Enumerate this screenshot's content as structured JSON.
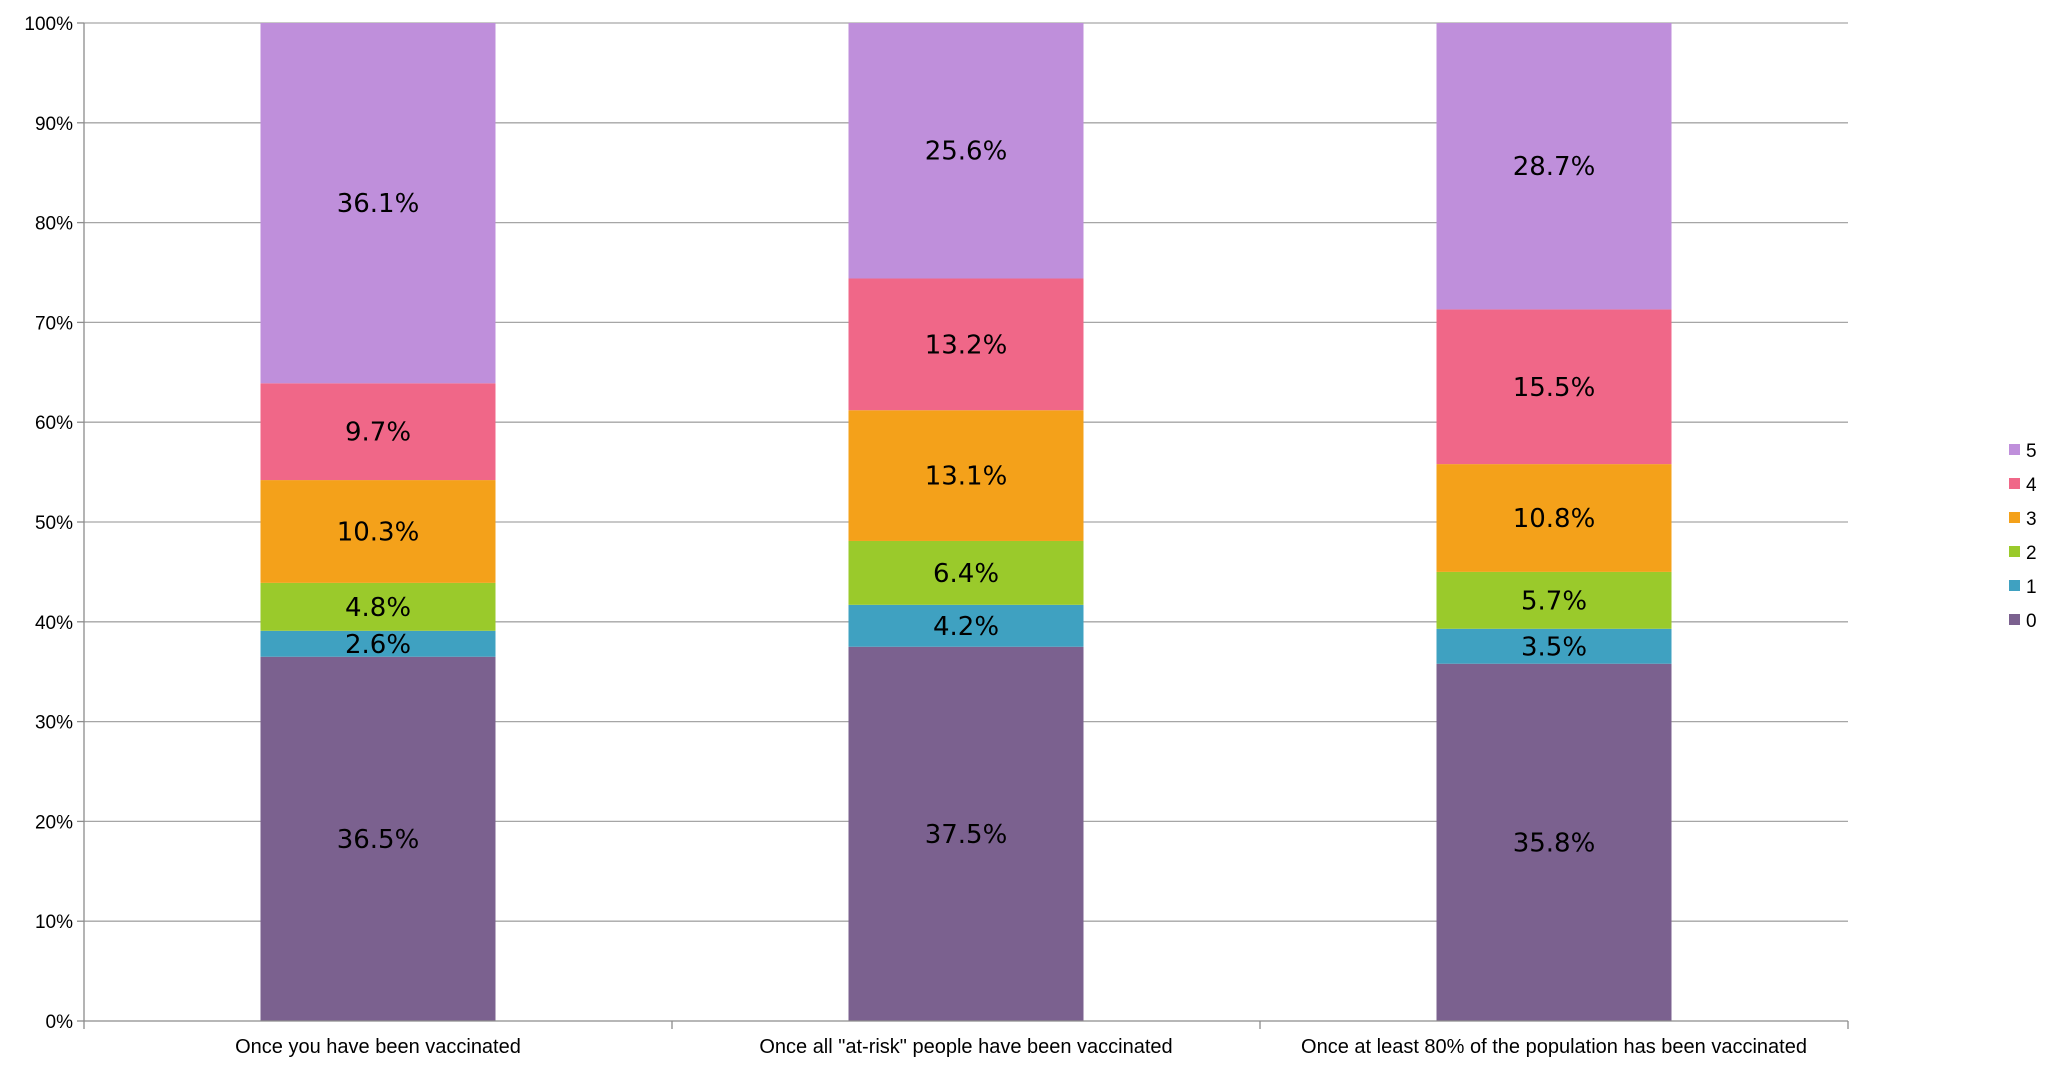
{
  "chart_data": {
    "type": "bar",
    "stacked": true,
    "percent": true,
    "categories": [
      "Once you have been vaccinated",
      "Once all \"at-risk\" people have been vaccinated",
      "Once at least 80% of the population has been vaccinated"
    ],
    "series": [
      {
        "name": "0",
        "color": "#7B618F",
        "values": [
          36.5,
          37.5,
          35.8
        ],
        "labels": [
          "36.5%",
          "37.5%",
          "35.8%"
        ]
      },
      {
        "name": "1",
        "color": "#3FA1C1",
        "values": [
          2.6,
          4.2,
          3.5
        ],
        "labels": [
          "2.6%",
          "4.2%",
          "3.5%"
        ]
      },
      {
        "name": "2",
        "color": "#9ACA2B",
        "values": [
          4.8,
          6.4,
          5.7
        ],
        "labels": [
          "4.8%",
          "6.4%",
          "5.7%"
        ]
      },
      {
        "name": "3",
        "color": "#F4A11A",
        "values": [
          10.3,
          13.1,
          10.8
        ],
        "labels": [
          "10.3%",
          "13.1%",
          "10.8%"
        ]
      },
      {
        "name": "4",
        "color": "#F06788",
        "values": [
          9.7,
          13.2,
          15.5
        ],
        "labels": [
          "9.7%",
          "13.2%",
          "15.5%"
        ]
      },
      {
        "name": "5",
        "color": "#BF8FDB",
        "values": [
          36.1,
          25.6,
          28.7
        ],
        "labels": [
          "36.1%",
          "25.6%",
          "28.7%"
        ]
      }
    ],
    "ylim": [
      0,
      100
    ],
    "yticks": [
      "0%",
      "10%",
      "20%",
      "30%",
      "40%",
      "50%",
      "60%",
      "70%",
      "80%",
      "90%",
      "100%"
    ],
    "grid": true,
    "legend": "right",
    "legend_order": [
      "5",
      "4",
      "3",
      "2",
      "1",
      "0"
    ],
    "title": "",
    "xlabel": "",
    "ylabel": ""
  }
}
